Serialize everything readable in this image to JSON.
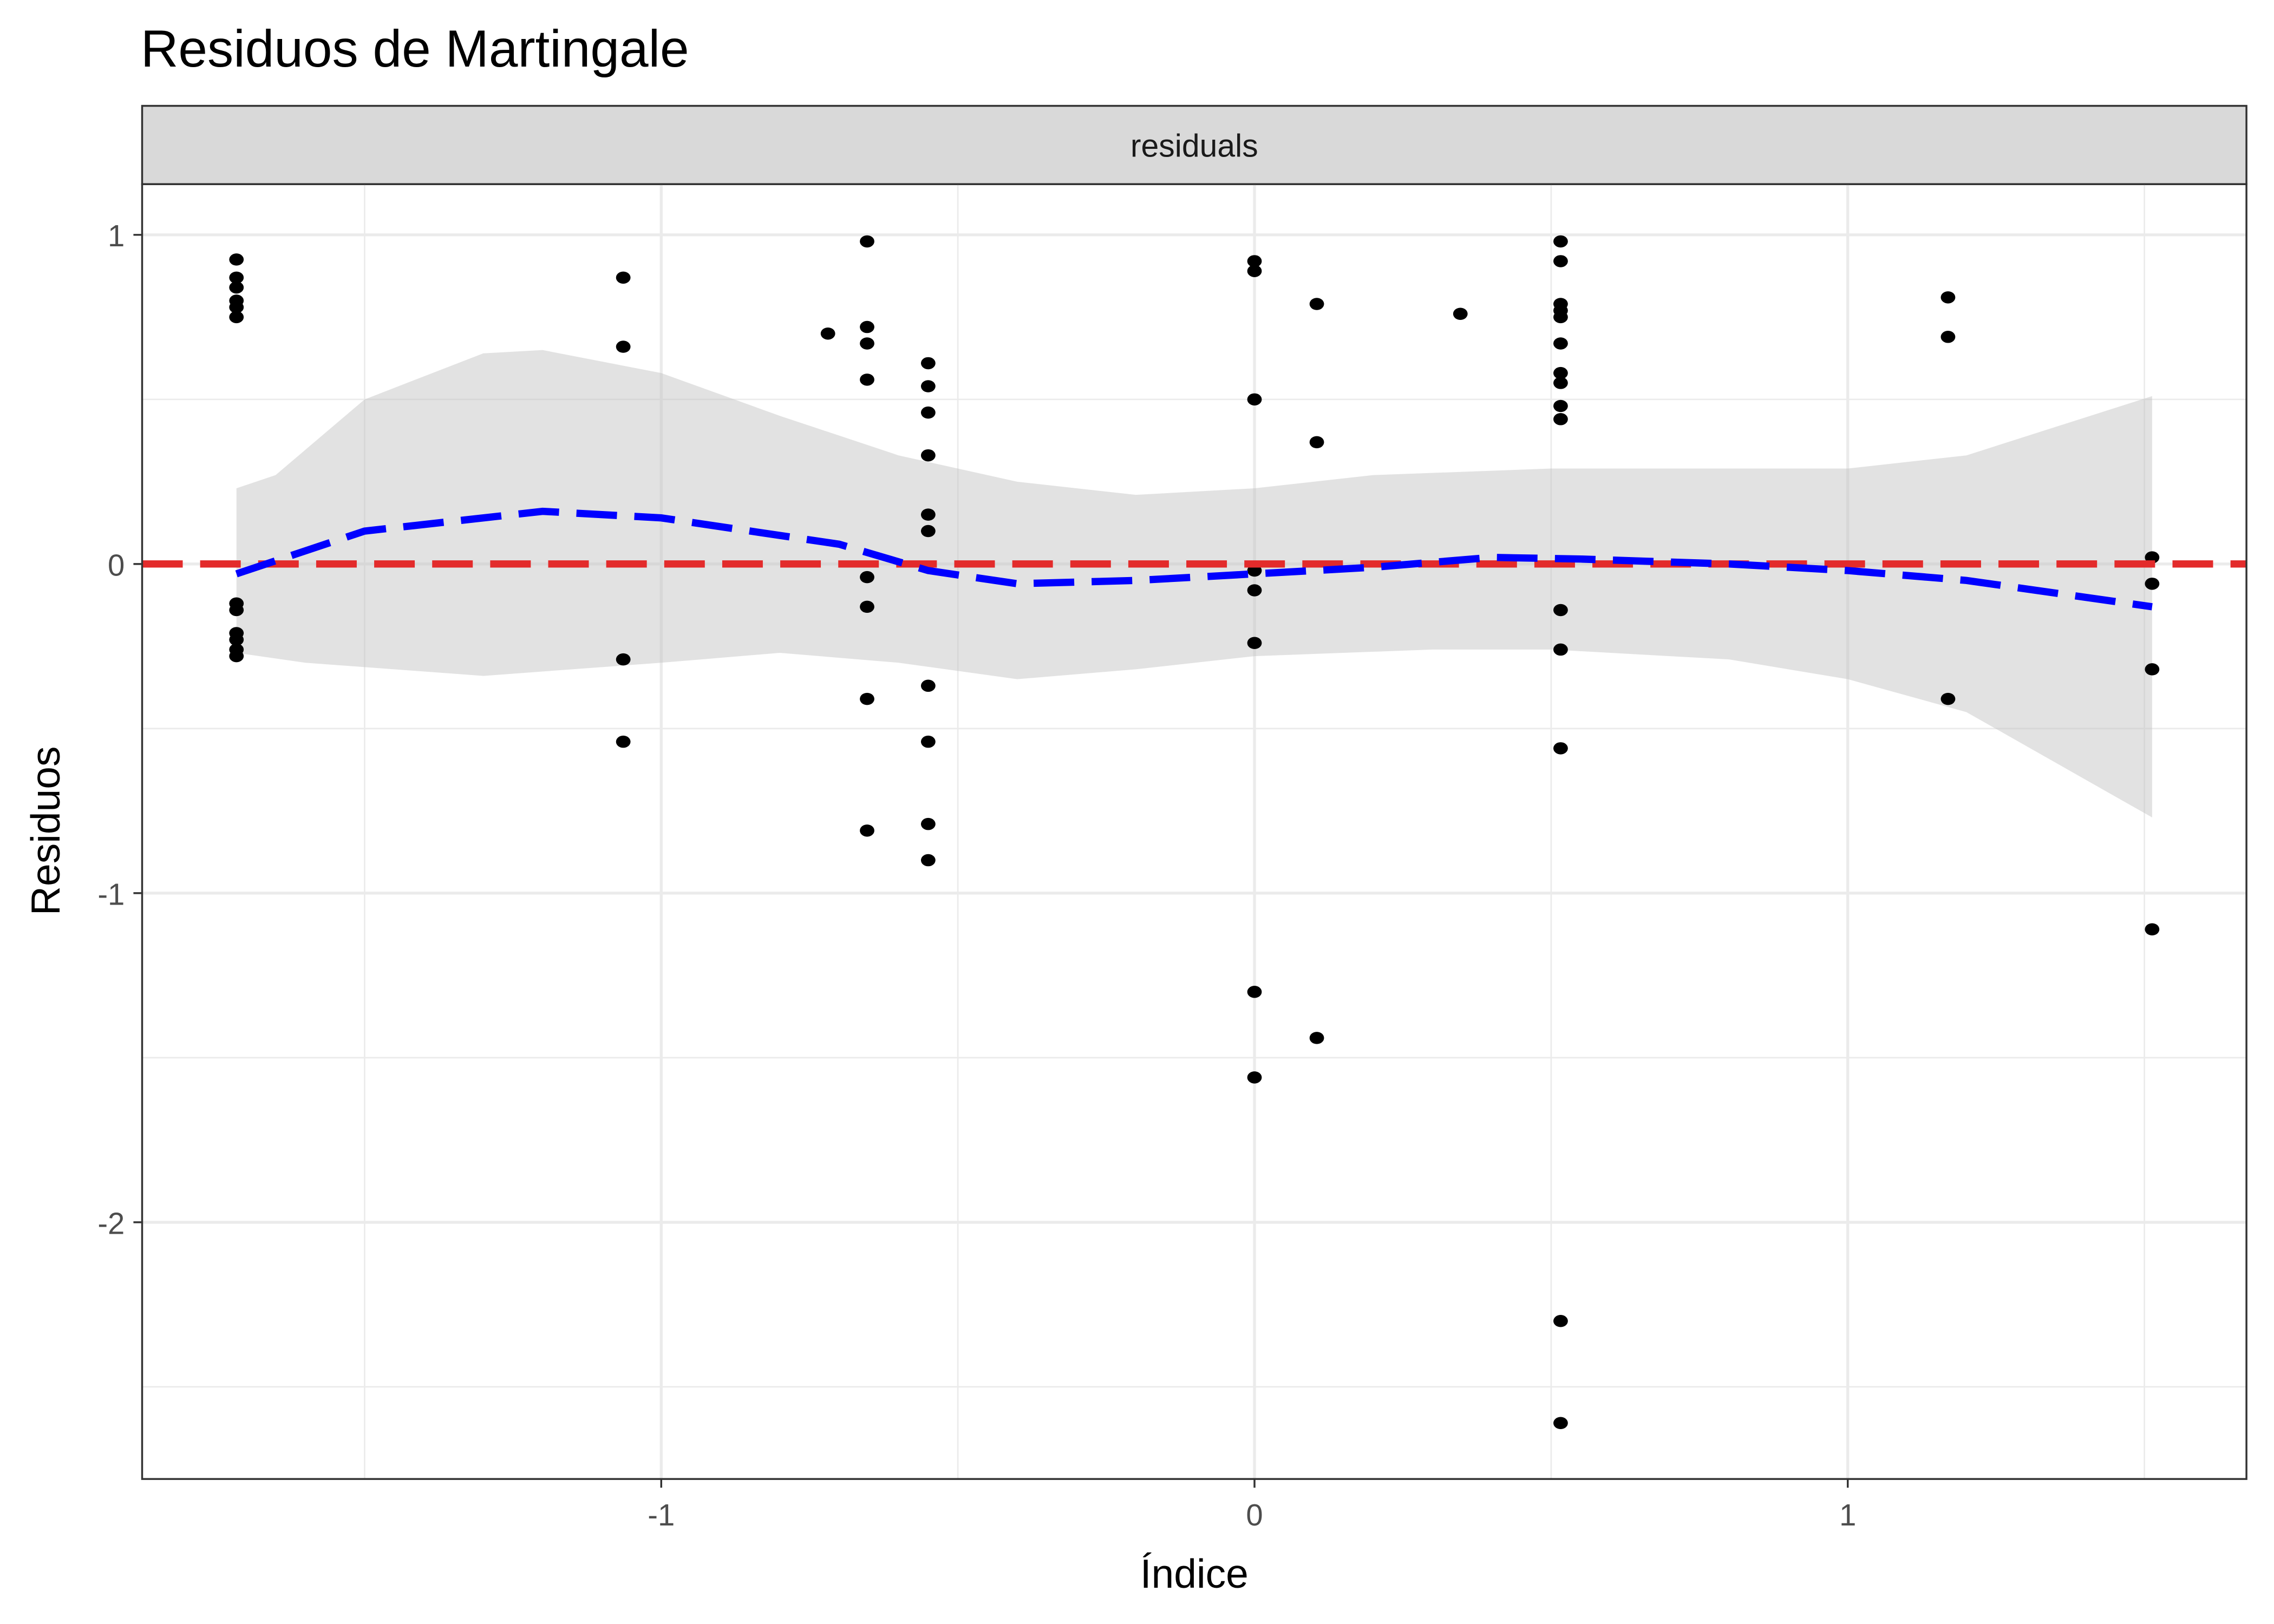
{
  "chart_data": {
    "type": "scatter",
    "title": "Residuos de Martingale",
    "facet_label": "residuals",
    "xlabel": "Índice",
    "ylabel": "Residuos",
    "xlim": [
      -1.875,
      1.672
    ],
    "ylim": [
      -2.78,
      1.154
    ],
    "x_ticks": [
      -1,
      0,
      1
    ],
    "x_tick_labels": [
      "-1",
      "0",
      "1"
    ],
    "y_ticks": [
      1,
      0,
      -1,
      -2
    ],
    "y_tick_labels": [
      "1",
      "0",
      "-1",
      "-2"
    ],
    "x_minor": [
      -1.5,
      -0.5,
      0.5,
      1.5
    ],
    "y_minor": [
      0.5,
      -0.5,
      -1.5,
      -2.5
    ],
    "grid": true,
    "colors": {
      "points": "#000000",
      "smooth": "#0000ff",
      "reference": "#e32b2b",
      "ribbon": "#bfbfbf"
    },
    "reference_line_y": 0,
    "points": [
      [
        -1.716,
        0.925
      ],
      [
        -1.716,
        0.87
      ],
      [
        -1.716,
        0.84
      ],
      [
        -1.716,
        0.8
      ],
      [
        -1.716,
        0.78
      ],
      [
        -1.716,
        0.75
      ],
      [
        -1.716,
        -0.12
      ],
      [
        -1.716,
        -0.14
      ],
      [
        -1.716,
        -0.21
      ],
      [
        -1.716,
        -0.23
      ],
      [
        -1.716,
        -0.26
      ],
      [
        -1.716,
        -0.28
      ],
      [
        -1.064,
        0.87
      ],
      [
        -1.064,
        0.66
      ],
      [
        -1.064,
        -0.29
      ],
      [
        -1.064,
        -0.54
      ],
      [
        -0.719,
        0.7
      ],
      [
        -0.653,
        0.98
      ],
      [
        -0.653,
        0.72
      ],
      [
        -0.653,
        0.67
      ],
      [
        -0.653,
        0.56
      ],
      [
        -0.653,
        -0.04
      ],
      [
        -0.653,
        -0.13
      ],
      [
        -0.653,
        -0.41
      ],
      [
        -0.653,
        -0.81
      ],
      [
        -0.55,
        0.61
      ],
      [
        -0.55,
        0.54
      ],
      [
        -0.55,
        0.46
      ],
      [
        -0.55,
        0.33
      ],
      [
        -0.55,
        0.15
      ],
      [
        -0.55,
        0.1
      ],
      [
        -0.55,
        -0.37
      ],
      [
        -0.55,
        -0.54
      ],
      [
        -0.55,
        -0.79
      ],
      [
        -0.55,
        -0.9
      ],
      [
        0,
        0.92
      ],
      [
        0,
        0.89
      ],
      [
        0,
        0.5
      ],
      [
        0,
        -0.02
      ],
      [
        0,
        -0.08
      ],
      [
        0,
        -0.24
      ],
      [
        0,
        -1.3
      ],
      [
        0,
        -1.56
      ],
      [
        0.105,
        0.79
      ],
      [
        0.105,
        0.37
      ],
      [
        0.105,
        -1.44
      ],
      [
        0.347,
        0.76
      ],
      [
        0.516,
        0.98
      ],
      [
        0.516,
        0.92
      ],
      [
        0.516,
        0.79
      ],
      [
        0.516,
        0.77
      ],
      [
        0.516,
        0.75
      ],
      [
        0.516,
        0.67
      ],
      [
        0.516,
        0.58
      ],
      [
        0.516,
        0.55
      ],
      [
        0.516,
        0.48
      ],
      [
        0.516,
        0.44
      ],
      [
        0.516,
        -0.14
      ],
      [
        0.516,
        -0.26
      ],
      [
        0.516,
        -0.56
      ],
      [
        0.516,
        -2.3
      ],
      [
        0.516,
        -2.61
      ],
      [
        1.169,
        0.81
      ],
      [
        1.169,
        0.69
      ],
      [
        1.169,
        -0.41
      ],
      [
        1.513,
        0.02
      ],
      [
        1.513,
        -0.06
      ],
      [
        1.513,
        -0.32
      ],
      [
        1.513,
        -1.11
      ]
    ],
    "smooth": [
      [
        -1.716,
        -0.03
      ],
      [
        -1.5,
        0.1
      ],
      [
        -1.2,
        0.16
      ],
      [
        -1.0,
        0.14
      ],
      [
        -0.7,
        0.06
      ],
      [
        -0.55,
        -0.02
      ],
      [
        -0.4,
        -0.06
      ],
      [
        -0.2,
        -0.05
      ],
      [
        0,
        -0.03
      ],
      [
        0.2,
        -0.01
      ],
      [
        0.4,
        0.02
      ],
      [
        0.55,
        0.015
      ],
      [
        0.8,
        0.0
      ],
      [
        1.0,
        -0.02
      ],
      [
        1.2,
        -0.05
      ],
      [
        1.513,
        -0.13
      ]
    ],
    "ribbon_upper": [
      [
        -1.716,
        0.23
      ],
      [
        -1.65,
        0.27
      ],
      [
        -1.5,
        0.5
      ],
      [
        -1.3,
        0.64
      ],
      [
        -1.2,
        0.65
      ],
      [
        -1.0,
        0.58
      ],
      [
        -0.8,
        0.45
      ],
      [
        -0.6,
        0.33
      ],
      [
        -0.4,
        0.25
      ],
      [
        -0.2,
        0.21
      ],
      [
        0,
        0.23
      ],
      [
        0.2,
        0.27
      ],
      [
        0.5,
        0.29
      ],
      [
        1.0,
        0.29
      ],
      [
        1.2,
        0.33
      ],
      [
        1.513,
        0.51
      ]
    ],
    "ribbon_lower": [
      [
        -1.716,
        -0.27
      ],
      [
        -1.6,
        -0.3
      ],
      [
        -1.3,
        -0.34
      ],
      [
        -1.0,
        -0.3
      ],
      [
        -0.8,
        -0.27
      ],
      [
        -0.6,
        -0.3
      ],
      [
        -0.4,
        -0.35
      ],
      [
        -0.2,
        -0.32
      ],
      [
        0,
        -0.28
      ],
      [
        0.3,
        -0.26
      ],
      [
        0.5,
        -0.26
      ],
      [
        0.8,
        -0.29
      ],
      [
        1.0,
        -0.35
      ],
      [
        1.2,
        -0.45
      ],
      [
        1.513,
        -0.77
      ]
    ]
  }
}
